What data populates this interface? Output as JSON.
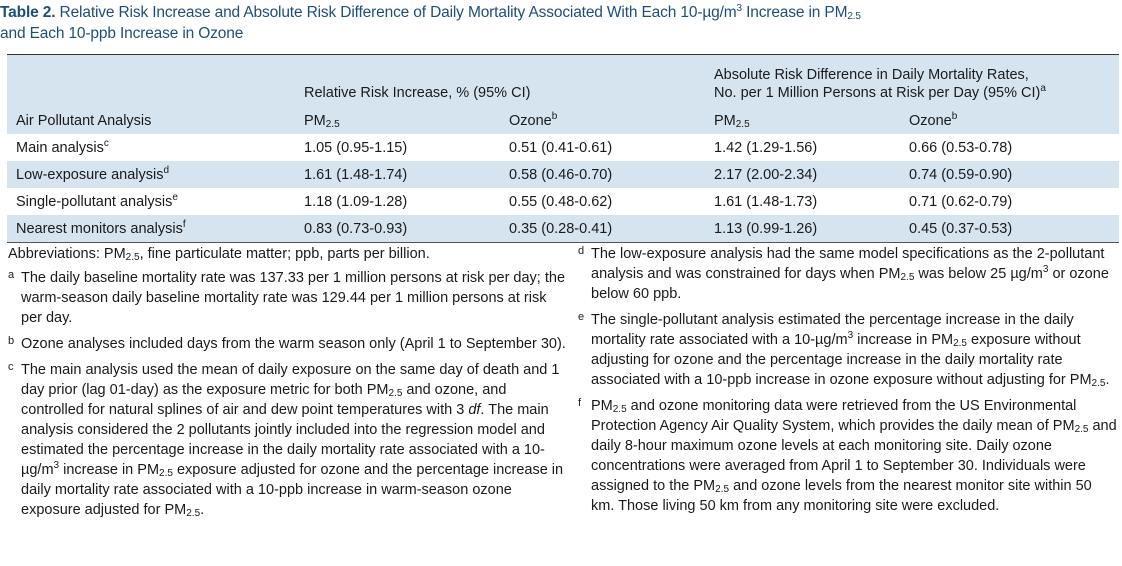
{
  "caption": {
    "label": "Table 2.",
    "text_a": "Relative Risk Increase and Absolute Risk Difference of Daily Mortality Associated With Each 10-µg/m",
    "sup3": "3",
    "text_b": " Increase in PM",
    "sub25": "2.5",
    "line2": "and Each 10-ppb Increase in Ozone"
  },
  "table": {
    "group_rr": "Relative Risk Increase, % (95% CI)",
    "group_ard_line1": "Absolute Risk Difference in Daily Mortality Rates,",
    "group_ard_line2": "No. per 1 Million Persons at Risk per Day (95% CI)",
    "group_ard_sup": "a",
    "col_analysis": "Air Pollutant Analysis",
    "col_pm": "PM",
    "col_pm_sub": "2.5",
    "col_ozone": "Ozone",
    "col_ozone_sup": "b",
    "rows": [
      {
        "label": "Main analysis",
        "sup": "c",
        "rr_pm": "1.05 (0.95-1.15)",
        "rr_oz": "0.51 (0.41-0.61)",
        "ard_pm": "1.42 (1.29-1.56)",
        "ard_oz": "0.66 (0.53-0.78)"
      },
      {
        "label": "Low-exposure analysis",
        "sup": "d",
        "rr_pm": "1.61 (1.48-1.74)",
        "rr_oz": "0.58 (0.46-0.70)",
        "ard_pm": "2.17 (2.00-2.34)",
        "ard_oz": "0.74 (0.59-0.90)"
      },
      {
        "label": "Single-pollutant analysis",
        "sup": "e",
        "rr_pm": "1.18 (1.09-1.28)",
        "rr_oz": "0.55 (0.48-0.62)",
        "ard_pm": "1.61 (1.48-1.73)",
        "ard_oz": "0.71 (0.62-0.79)"
      },
      {
        "label": "Nearest monitors analysis",
        "sup": "f",
        "rr_pm": "0.83 (0.73-0.93)",
        "rr_oz": "0.35 (0.28-0.41)",
        "ard_pm": "1.13 (0.99-1.26)",
        "ard_oz": "0.45 (0.37-0.53)"
      }
    ]
  },
  "notes": {
    "abbr_a": "Abbreviations: PM",
    "abbr_sub": "2.5",
    "abbr_b": ", fine particulate matter; ppb, parts per billion.",
    "a_mark": "a",
    "a_text": "The daily baseline mortality rate was 137.33 per 1 million persons at risk per day; the warm-season daily baseline mortality rate was 129.44 per 1 million persons at risk per day.",
    "b_mark": "b",
    "b_text": "Ozone analyses included days from the warm season only (April 1 to September 30).",
    "c_mark": "c",
    "c_1": "The main analysis used the mean of daily exposure on the same day of death and 1 day prior (lag 01-day) as the exposure metric for both PM",
    "c_sub1": "2.5",
    "c_2": " and ozone, and controlled for natural splines of air and dew point temperatures with 3 ",
    "c_df": "df",
    "c_3": ". The main analysis considered the 2 pollutants jointly included into the regression model and estimated the percentage increase in the daily mortality rate associated with a 10-µg/m",
    "c_sup3": "3",
    "c_4": " increase in PM",
    "c_sub2": "2.5",
    "c_5": " exposure adjusted for ozone and the percentage increase in daily mortality rate associated with a 10-ppb increase in warm-season ozone exposure adjusted for PM",
    "c_sub3": "2.5",
    "c_6": ".",
    "d_mark": "d",
    "d_1": "The low-exposure analysis had the same model specifications as the 2-pollutant analysis and was constrained for days when PM",
    "d_sub": "2.5",
    "d_2": " was below 25 µg/m",
    "d_sup": "3",
    "d_3": " or ozone below 60 ppb.",
    "e_mark": "e",
    "e_1": "The single-pollutant analysis estimated the percentage increase in the daily mortality rate associated with a 10-µg/m",
    "e_sup": "3",
    "e_2": " increase in PM",
    "e_sub1": "2.5",
    "e_3": " exposure without adjusting for ozone and the percentage increase in the daily mortality rate associated with a 10-ppb increase in ozone exposure without adjusting for PM",
    "e_sub2": "2.5",
    "e_4": ".",
    "f_mark": "f",
    "f_a": "PM",
    "f_sub1": "2.5",
    "f_1": " and ozone monitoring data were retrieved from the US Environmental Protection Agency Air Quality System, which provides the daily mean of PM",
    "f_sub2": "2.5",
    "f_2": " and daily 8-hour maximum ozone levels at each monitoring site. Daily ozone concentrations were averaged from April 1 to September 30. Individuals were assigned to the PM",
    "f_sub3": "2.5",
    "f_3": " and ozone levels from the nearest monitor site within 50 km. Those living 50 km from any monitoring site were excluded."
  }
}
